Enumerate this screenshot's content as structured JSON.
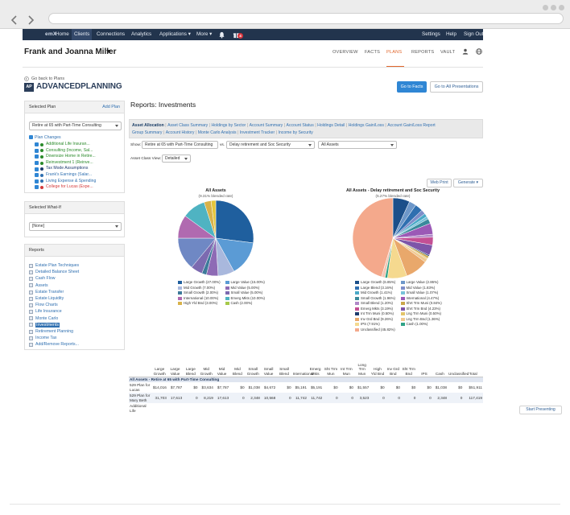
{
  "browser": {
    "address": ""
  },
  "nav": {
    "brand": "emX",
    "links": [
      "Home",
      "Clients",
      "Connections",
      "Analytics",
      "Applications ▾",
      "More ▾"
    ],
    "notification_count": "4",
    "right_links": [
      "Settings",
      "Help",
      "Sign Out"
    ]
  },
  "client": {
    "name": "Frank and Joanna Miller",
    "tabs": [
      "OVERVIEW",
      "FACTS",
      "PLANS",
      "REPORTS",
      "VAULT"
    ]
  },
  "subheader": {
    "go_back": "Go back to Plans",
    "logo_mark": "AP",
    "logo_text": "ADVANCEDPLANNING",
    "go_to_facts": "Go to Facts",
    "go_to_presentations": "Go to All Presentations"
  },
  "sidebar": {
    "selected_plan": {
      "heading": "Selected Plan",
      "add_plan": "Add Plan",
      "value": "Retire at 65 with Part-Time Consulting",
      "changes_heading": "Plan Changes",
      "changes": [
        {
          "label": "Additional Life Insuran...",
          "color": "#2a8a2a",
          "dot": "#2a8a2a"
        },
        {
          "label": "Consulting (Income, Sal...",
          "color": "#2a8a2a",
          "dot": "#2a8a2a"
        },
        {
          "label": "Downsize Home in Retire...",
          "color": "#2a8a2a",
          "dot": "#2a8a2a"
        },
        {
          "label": "Reinvestment 1 (Reinve...",
          "color": "#2a8a2a",
          "dot": "#2a8a2a"
        },
        {
          "label": "Tax Mode Assumptions",
          "color": "#1d3b6e",
          "dot": "#1d3b6e"
        },
        {
          "label": "Frank's Earnings (Salar...",
          "color": "#2f6fb0",
          "dot": "#2f6fb0"
        },
        {
          "label": "Living Expense & Spending",
          "color": "#2f6fb0",
          "dot": "#2f6fb0"
        },
        {
          "label": "College for Lucas (Expe...",
          "color": "#d43a3a",
          "dot": "#d43a3a"
        }
      ]
    },
    "what_if": {
      "heading": "Selected What-If",
      "value": "[None]"
    },
    "reports": {
      "heading": "Reports",
      "items": [
        "Estate Plan Techniques",
        "Detailed Balance Sheet",
        "Cash Flow",
        "Assets",
        "Estate Transfer",
        "Estate Liquidity",
        "Flow Charts",
        "Life Insurance",
        "Monte Carlo",
        "Investments",
        "Retirement Planning",
        "Income Tax",
        "Add/Remove Reports..."
      ],
      "selected": "Investments"
    }
  },
  "main": {
    "title": "Reports: Investments",
    "tabs": [
      "Asset Allocation",
      "Asset Class Summary",
      "Holdings by Sector",
      "Account Summary",
      "Account Status",
      "Holdings Detail",
      "Holdings Gain/Loss",
      "Account Gain/Loss Report",
      "Group Summary",
      "Account History",
      "Monte Carlo Analysis",
      "Investment Tracker",
      "Income by Security"
    ],
    "active_tab": "Asset Allocation",
    "show_label": "Show:",
    "show_value": "Retire at 65 with Part-Time Consulting",
    "vs_label": "vs.",
    "vs_value": "Delay retirement and Soc Security",
    "assets_value": "All Assets",
    "view_label": "Asset Class View:",
    "view_value": "Detailed",
    "web_print": "Web Print",
    "generate": "Generate ▾",
    "start_presenting": "Start Presenting"
  },
  "chart_data": [
    {
      "type": "pie",
      "title": "All Assets",
      "subtitle": "(9.31% blended rate)",
      "slices": [
        {
          "label": "Large Growth",
          "value": 27.0,
          "color": "#1f5f9e"
        },
        {
          "label": "Large Value",
          "value": 15.0,
          "color": "#5b9bd5"
        },
        {
          "label": "Mid Growth",
          "value": 7.0,
          "color": "#a9b8dd"
        },
        {
          "label": "Mid Value",
          "value": 5.0,
          "color": "#8e6bb5"
        },
        {
          "label": "Small Growth",
          "value": 2.0,
          "color": "#3d7a9a"
        },
        {
          "label": "Small Value",
          "value": 5.0,
          "color": "#7c6ab0"
        },
        {
          "label": null,
          "value": 14.0,
          "color": "#6f88c4"
        },
        {
          "label": "International",
          "value": 10.0,
          "color": "#b06ab0"
        },
        {
          "label": "Emerg Mkts",
          "value": 10.0,
          "color": "#4fb3c2"
        },
        {
          "label": "High Yld Bnd",
          "value": 3.0,
          "color": "#d8b24a"
        },
        {
          "label": "Cash",
          "value": 2.0,
          "color": "#e5c53a",
          "legend_color": "#a6c94a"
        }
      ],
      "legend": [
        {
          "label": "Large Growth",
          "pct": "27.00%",
          "color": "#1f5f9e"
        },
        {
          "label": "Large Value",
          "pct": "15.00%",
          "color": "#5b9bd5"
        },
        {
          "label": "Mid Growth",
          "pct": "7.00%",
          "color": "#a9b8dd"
        },
        {
          "label": "Mid Value",
          "pct": "5.00%",
          "color": "#8e6bb5"
        },
        {
          "label": "Small Growth",
          "pct": "2.00%",
          "color": "#3d7a9a"
        },
        {
          "label": "Small Value",
          "pct": "5.00%",
          "color": "#7c6ab0"
        },
        {
          "label": "International",
          "pct": "10.00%",
          "color": "#b06ab0"
        },
        {
          "label": "Emerg Mkts",
          "pct": "10.00%",
          "color": "#4fb3c2"
        },
        {
          "label": "High Yld Bnd",
          "pct": "3.00%",
          "color": "#d8b24a"
        },
        {
          "label": "Cash",
          "pct": "2.00%",
          "color": "#a6c94a"
        }
      ]
    },
    {
      "type": "pie",
      "title": "All Assets - Delay retirement and Soc Security",
      "subtitle": "(5.27% blended rate)",
      "slices": [
        {
          "label": "Large Growth",
          "value": 6.85,
          "color": "#1b4f8a"
        },
        {
          "label": "Large Value",
          "value": 2.86,
          "color": "#6d97c9"
        },
        {
          "label": "Large Blend",
          "value": 3.16,
          "color": "#2f6fb0"
        },
        {
          "label": "Mid Value",
          "value": 1.83,
          "color": "#7d8ec9"
        },
        {
          "label": "Mid Growth",
          "value": 1.41,
          "color": "#4aa9c7"
        },
        {
          "label": "Small Value",
          "value": 1.07,
          "color": "#77c2d8"
        },
        {
          "label": "Small Growth",
          "value": 1.96,
          "color": "#3a8a9c"
        },
        {
          "label": "International",
          "value": 4.47,
          "color": "#9b59b6"
        },
        {
          "label": "Small Blend",
          "value": 1.2,
          "color": "#b088c7"
        },
        {
          "label": "Emerg Mkts",
          "value": 3.19,
          "color": "#c34f94"
        },
        {
          "label": "Shrt Trm Bnd",
          "value": 4.23,
          "color": "#7d55a8"
        },
        {
          "label": "Int Trm Muni",
          "value": 0.5,
          "color": "#1d3b6e"
        },
        {
          "label": "Shrt Trm Muni",
          "value": 0.84,
          "color": "#c9a64a"
        },
        {
          "label": "Lng Trm Muni",
          "value": 0.5,
          "color": "#e3c46a"
        },
        {
          "label": "Lng Trm Bnd",
          "value": 1.36,
          "color": "#f0c890"
        },
        {
          "label": "Inv Grd Bnd",
          "value": 9.26,
          "color": "#e9a86b"
        },
        {
          "label": "IPS",
          "value": 7.91,
          "color": "#f5d98f"
        },
        {
          "label": "Cash",
          "value": 1.0,
          "color": "#2fa387"
        },
        {
          "label": null,
          "value": 1.4,
          "color": "#f2c6b4"
        },
        {
          "label": "Unclassified",
          "value": 45.82,
          "color": "#f4a98c"
        }
      ],
      "legend": [
        {
          "label": "Large Growth",
          "pct": "6.85%",
          "color": "#1b4f8a"
        },
        {
          "label": "Large Value",
          "pct": "2.86%",
          "color": "#6d97c9"
        },
        {
          "label": "Large Blend",
          "pct": "3.16%",
          "color": "#2f6fb0"
        },
        {
          "label": "Mid Value",
          "pct": "1.83%",
          "color": "#7d8ec9"
        },
        {
          "label": "Mid Growth",
          "pct": "1.41%",
          "color": "#4aa9c7"
        },
        {
          "label": "Small Value",
          "pct": "1.07%",
          "color": "#77c2d8"
        },
        {
          "label": "Small Growth",
          "pct": "1.96%",
          "color": "#3a8a9c"
        },
        {
          "label": "International",
          "pct": "4.47%",
          "color": "#9b59b6"
        },
        {
          "label": "Small Blend",
          "pct": "1.20%",
          "color": "#b088c7"
        },
        {
          "label": "Shrt Trm Muni",
          "pct": "0.84%",
          "color": "#c9a64a"
        },
        {
          "label": "Emerg Mkts",
          "pct": "3.19%",
          "color": "#c34f94"
        },
        {
          "label": "Shrt Trm Bnd",
          "pct": "4.23%",
          "color": "#7d55a8"
        },
        {
          "label": "Int Trm Muni",
          "pct": "0.50%",
          "color": "#1d3b6e"
        },
        {
          "label": "Lng Trm Muni",
          "pct": "0.50%",
          "color": "#e3c46a"
        },
        {
          "label": "Inv Grd Bnd",
          "pct": "9.26%",
          "color": "#e9a86b"
        },
        {
          "label": "Lng Trm Bnd",
          "pct": "1.36%",
          "color": "#f0c890"
        },
        {
          "label": "IPS",
          "pct": "7.91%",
          "color": "#f5d98f"
        },
        {
          "label": "Cash",
          "pct": "1.00%",
          "color": "#2fa387"
        },
        {
          "label": "Unclassified",
          "pct": "45.82%",
          "color": "#f4a98c"
        }
      ]
    }
  ],
  "table": {
    "columns": [
      "Large Growth",
      "Large Value",
      "Large Blend",
      "Mid Growth",
      "Mid Value",
      "Mid Blend",
      "Small Growth",
      "Small Value",
      "Small Blend",
      "International",
      "Emerg Mkts",
      "Sht Trm Mun",
      "Int Trm Mun",
      "Long Trm Mun",
      "High Yld Bnd",
      "Inv Grd Bnd",
      "Sht Trm Bnd",
      "IPS",
      "Cash",
      "Unclassified",
      "Total"
    ],
    "group": "All Assets - Retire at 65 with Part-Time Consulting",
    "rows": [
      {
        "label": "529 Plan for Lucas",
        "values": [
          "$14,016",
          "$7,787",
          "$0",
          "$3,634",
          "$7,787",
          "$0",
          "$1,038",
          "$4,672",
          "$0",
          "$5,191",
          "$5,191",
          "$0",
          "$0",
          "$1,557",
          "$0",
          "$0",
          "$0",
          "$0",
          "$1,038",
          "$0",
          "$51,911"
        ]
      },
      {
        "label": "529 Plan for Mary Beth",
        "values": [
          "31,703",
          "17,613",
          "0",
          "8,219",
          "17,613",
          "0",
          "2,348",
          "10,568",
          "0",
          "11,742",
          "11,742",
          "0",
          "0",
          "3,523",
          "0",
          "0",
          "0",
          "0",
          "2,348",
          "0",
          "117,419"
        ]
      },
      {
        "label": "Additional Life",
        "values": [
          "",
          "",
          "",
          "",
          "",
          "",
          "",
          "",
          "",
          "",
          "",
          "",
          "",
          "",
          "",
          "",
          "",
          "",
          "",
          "",
          ""
        ]
      }
    ]
  }
}
